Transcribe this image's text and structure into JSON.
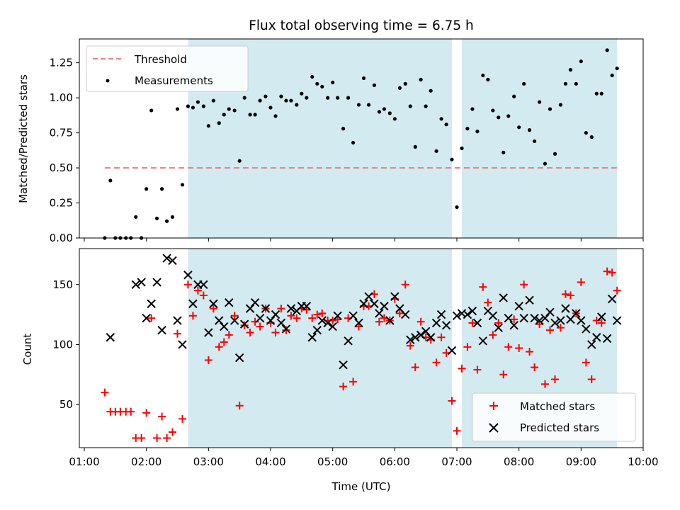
{
  "chart_data": [
    {
      "type": "scatter",
      "title": "Flux total observing time = 6.75 h",
      "ylabel": "Matched/Predicted stars",
      "xlabel": "",
      "xlim": [
        0.92,
        10.0
      ],
      "ylim": [
        0.0,
        1.42
      ],
      "yticks": [
        "0.00",
        "0.25",
        "0.50",
        "0.75",
        "1.00",
        "1.25"
      ],
      "grid": false,
      "legend_position": "top-left",
      "shaded_spans": [
        [
          2.67,
          6.92
        ],
        [
          7.08,
          9.58
        ]
      ],
      "shade_color": "#d3eaf0",
      "threshold": {
        "name": "Threshold",
        "value": 0.5,
        "x_range": [
          1.33,
          9.58
        ],
        "color": "#f08080"
      },
      "series": [
        {
          "name": "Measurements",
          "color": "#000000",
          "x": [
            1.33,
            1.42,
            1.5,
            1.58,
            1.67,
            1.75,
            1.83,
            1.92,
            2.0,
            2.08,
            2.17,
            2.25,
            2.33,
            2.42,
            2.5,
            2.58,
            2.67,
            2.75,
            2.83,
            2.92,
            3.0,
            3.08,
            3.17,
            3.25,
            3.33,
            3.42,
            3.5,
            3.58,
            3.67,
            3.75,
            3.83,
            3.92,
            4.0,
            4.08,
            4.17,
            4.25,
            4.33,
            4.42,
            4.5,
            4.58,
            4.67,
            4.75,
            4.83,
            4.92,
            5.0,
            5.08,
            5.17,
            5.25,
            5.33,
            5.42,
            5.5,
            5.58,
            5.67,
            5.75,
            5.83,
            5.92,
            6.0,
            6.08,
            6.17,
            6.25,
            6.33,
            6.42,
            6.5,
            6.58,
            6.67,
            6.75,
            6.83,
            6.92,
            7.0,
            7.08,
            7.17,
            7.25,
            7.33,
            7.42,
            7.5,
            7.58,
            7.67,
            7.75,
            7.83,
            7.92,
            8.0,
            8.08,
            8.17,
            8.25,
            8.33,
            8.42,
            8.5,
            8.58,
            8.67,
            8.75,
            8.83,
            8.92,
            9.0,
            9.08,
            9.17,
            9.25,
            9.33,
            9.42,
            9.5,
            9.58
          ],
          "y": [
            0.0,
            0.41,
            0.0,
            0.0,
            0.0,
            0.0,
            0.15,
            0.0,
            0.35,
            0.91,
            0.14,
            0.35,
            0.12,
            0.15,
            0.92,
            0.38,
            0.94,
            0.93,
            0.97,
            0.94,
            0.8,
            0.98,
            0.82,
            0.88,
            0.92,
            0.91,
            0.55,
            1.0,
            0.88,
            0.88,
            0.98,
            1.01,
            0.93,
            0.87,
            1.01,
            0.98,
            0.98,
            0.95,
            1.03,
            1.0,
            1.15,
            1.1,
            1.08,
            1.0,
            1.11,
            1.0,
            0.78,
            1.0,
            0.68,
            0.95,
            1.14,
            0.95,
            1.09,
            0.9,
            0.92,
            0.89,
            0.85,
            1.07,
            1.1,
            0.94,
            0.65,
            1.13,
            0.94,
            1.05,
            0.62,
            0.85,
            0.81,
            0.56,
            0.22,
            0.64,
            0.78,
            0.92,
            0.76,
            1.16,
            1.13,
            0.91,
            0.86,
            0.61,
            0.87,
            1.01,
            0.79,
            1.1,
            0.77,
            0.69,
            0.97,
            0.53,
            0.92,
            0.6,
            0.95,
            1.1,
            1.2,
            1.1,
            1.26,
            0.75,
            0.72,
            1.03,
            1.03,
            1.34,
            1.16,
            1.21
          ]
        }
      ]
    },
    {
      "type": "scatter",
      "title": "",
      "xlabel": "Time (UTC)",
      "ylabel": "Count",
      "xlim": [
        0.92,
        10.0
      ],
      "ylim": [
        14,
        180
      ],
      "yticks": [
        "50",
        "100",
        "150"
      ],
      "xticks": [
        "01:00",
        "02:00",
        "03:00",
        "04:00",
        "05:00",
        "06:00",
        "07:00",
        "08:00",
        "09:00",
        "10:00"
      ],
      "grid": false,
      "legend_position": "bottom-right",
      "shaded_spans": [
        [
          2.67,
          6.92
        ],
        [
          7.08,
          9.58
        ]
      ],
      "series": [
        {
          "name": "Matched stars",
          "color": "#ff0000",
          "marker": "+",
          "x": [
            1.33,
            1.42,
            1.5,
            1.58,
            1.67,
            1.75,
            1.83,
            1.92,
            2.0,
            2.08,
            2.17,
            2.25,
            2.33,
            2.42,
            2.5,
            2.58,
            2.67,
            2.75,
            2.83,
            2.92,
            3.0,
            3.08,
            3.17,
            3.25,
            3.33,
            3.42,
            3.5,
            3.58,
            3.67,
            3.75,
            3.83,
            3.92,
            4.0,
            4.08,
            4.17,
            4.25,
            4.33,
            4.42,
            4.5,
            4.58,
            4.67,
            4.75,
            4.83,
            4.92,
            5.0,
            5.08,
            5.17,
            5.25,
            5.33,
            5.42,
            5.5,
            5.58,
            5.67,
            5.75,
            5.83,
            5.92,
            6.0,
            6.08,
            6.17,
            6.25,
            6.33,
            6.42,
            6.5,
            6.58,
            6.67,
            6.75,
            6.83,
            6.92,
            7.0,
            7.08,
            7.17,
            7.25,
            7.33,
            7.42,
            7.5,
            7.58,
            7.67,
            7.75,
            7.83,
            7.92,
            8.0,
            8.08,
            8.17,
            8.25,
            8.33,
            8.42,
            8.5,
            8.58,
            8.67,
            8.75,
            8.83,
            8.92,
            9.0,
            9.08,
            9.17,
            9.25,
            9.33,
            9.42,
            9.5,
            9.58
          ],
          "y": [
            60,
            44,
            44,
            44,
            44,
            44,
            22,
            22,
            43,
            122,
            22,
            40,
            22,
            27,
            109,
            38,
            150,
            124,
            145,
            141,
            87,
            130,
            98,
            102,
            108,
            124,
            49,
            116,
            110,
            119,
            115,
            130,
            118,
            110,
            130,
            112,
            124,
            122,
            130,
            129,
            122,
            125,
            126,
            120,
            120,
            121,
            65,
            122,
            69,
            115,
            132,
            132,
            142,
            119,
            122,
            120,
            138,
            126,
            150,
            99,
            81,
            119,
            106,
            104,
            85,
            106,
            93,
            53,
            28,
            80,
            98,
            118,
            79,
            148,
            135,
            108,
            118,
            75,
            98,
            121,
            97,
            150,
            94,
            81,
            117,
            67,
            112,
            71,
            114,
            142,
            141,
            126,
            152,
            85,
            71,
            120,
            118,
            161,
            160,
            145
          ]
        },
        {
          "name": "Predicted stars",
          "color": "#000000",
          "marker": "x",
          "x": [
            1.42,
            1.83,
            1.92,
            2.0,
            2.08,
            2.17,
            2.25,
            2.33,
            2.42,
            2.5,
            2.58,
            2.67,
            2.75,
            2.83,
            2.92,
            3.0,
            3.08,
            3.17,
            3.25,
            3.33,
            3.42,
            3.5,
            3.58,
            3.67,
            3.75,
            3.83,
            3.92,
            4.0,
            4.08,
            4.17,
            4.25,
            4.33,
            4.42,
            4.5,
            4.58,
            4.67,
            4.75,
            4.83,
            4.92,
            5.0,
            5.08,
            5.17,
            5.25,
            5.33,
            5.42,
            5.5,
            5.58,
            5.67,
            5.75,
            5.83,
            5.92,
            6.0,
            6.08,
            6.17,
            6.25,
            6.33,
            6.42,
            6.5,
            6.58,
            6.67,
            6.75,
            6.83,
            6.92,
            7.0,
            7.08,
            7.17,
            7.25,
            7.33,
            7.42,
            7.5,
            7.58,
            7.67,
            7.75,
            7.83,
            7.92,
            8.0,
            8.08,
            8.17,
            8.25,
            8.33,
            8.42,
            8.5,
            8.58,
            8.67,
            8.75,
            8.83,
            8.92,
            9.0,
            9.08,
            9.17,
            9.25,
            9.33,
            9.42,
            9.5,
            9.58
          ],
          "y": [
            106,
            150,
            152,
            122,
            134,
            152,
            112,
            172,
            170,
            120,
            100,
            158,
            134,
            150,
            150,
            110,
            134,
            120,
            115,
            135,
            120,
            89,
            117,
            130,
            135,
            122,
            130,
            120,
            125,
            118,
            113,
            130,
            128,
            132,
            132,
            106,
            112,
            120,
            118,
            115,
            124,
            83,
            103,
            124,
            118,
            134,
            140,
            134,
            126,
            132,
            120,
            140,
            130,
            125,
            104,
            106,
            108,
            111,
            106,
            118,
            125,
            116,
            95,
            124,
            126,
            125,
            128,
            118,
            103,
            128,
            124,
            114,
            139,
            122,
            116,
            132,
            122,
            137,
            122,
            120,
            122,
            127,
            118,
            120,
            130,
            121,
            126,
            120,
            113,
            100,
            106,
            123,
            105,
            138,
            120
          ]
        }
      ]
    }
  ]
}
